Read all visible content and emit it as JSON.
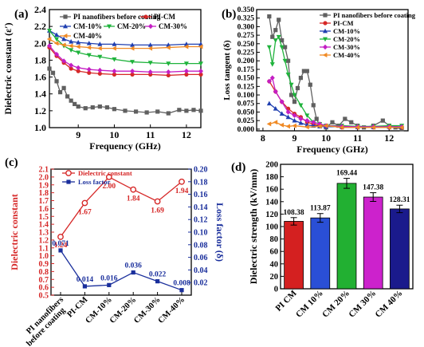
{
  "chart_data": [
    {
      "panel_label": "(a)",
      "type": "line",
      "xlabel": "Frequency (GHz)",
      "ylabel": "Dielectric constant (ε′)",
      "xlim": [
        8.2,
        12.4
      ],
      "ylim": [
        1.0,
        2.4
      ],
      "x_ticks": [
        9,
        10,
        11,
        12
      ],
      "y_ticks": [
        1.0,
        1.2,
        1.4,
        1.6,
        1.8,
        2.0,
        2.2,
        2.4
      ],
      "y_decimals": 1,
      "legend_position": "top",
      "series": [
        {
          "name": "PI nanofibers before coating",
          "color": "#606060",
          "marker": "square",
          "x": [
            8.2,
            8.3,
            8.4,
            8.5,
            8.6,
            8.7,
            8.8,
            8.9,
            9.0,
            9.2,
            9.4,
            9.6,
            9.8,
            10.0,
            10.3,
            10.6,
            10.9,
            11.2,
            11.5,
            11.8,
            12.0,
            12.2,
            12.4
          ],
          "y": [
            1.7,
            1.65,
            1.55,
            1.42,
            1.47,
            1.37,
            1.32,
            1.28,
            1.25,
            1.23,
            1.24,
            1.25,
            1.24,
            1.22,
            1.2,
            1.19,
            1.18,
            1.19,
            1.17,
            1.21,
            1.2,
            1.21,
            1.2
          ]
        },
        {
          "name": "PI-CM",
          "color": "#d62828",
          "marker": "circle",
          "x": [
            8.2,
            8.4,
            8.6,
            8.8,
            9.0,
            9.3,
            9.6,
            10.0,
            10.5,
            11.0,
            11.5,
            12.0,
            12.4
          ],
          "y": [
            1.95,
            1.85,
            1.77,
            1.7,
            1.67,
            1.65,
            1.64,
            1.63,
            1.63,
            1.63,
            1.62,
            1.63,
            1.63
          ]
        },
        {
          "name": "CM-10%",
          "color": "#1f3fb0",
          "marker": "triangle-up",
          "x": [
            8.2,
            8.4,
            8.6,
            8.8,
            9.0,
            9.3,
            9.6,
            10.0,
            10.5,
            11.0,
            11.5,
            12.0,
            12.4
          ],
          "y": [
            2.15,
            2.1,
            2.05,
            2.02,
            2.01,
            2.0,
            1.99,
            1.99,
            1.98,
            1.98,
            1.98,
            1.99,
            1.99
          ]
        },
        {
          "name": "CM-20%",
          "color": "#1fb33c",
          "marker": "triangle-down",
          "x": [
            8.2,
            8.4,
            8.6,
            8.8,
            9.0,
            9.3,
            9.6,
            10.0,
            10.5,
            11.0,
            11.5,
            12.0,
            12.4
          ],
          "y": [
            2.15,
            2.05,
            1.97,
            1.92,
            1.89,
            1.86,
            1.84,
            1.81,
            1.78,
            1.77,
            1.76,
            1.76,
            1.76
          ]
        },
        {
          "name": "CM-30%",
          "color": "#c41ec4",
          "marker": "diamond",
          "x": [
            8.2,
            8.4,
            8.6,
            8.8,
            9.0,
            9.3,
            9.6,
            10.0,
            10.5,
            11.0,
            11.5,
            12.0,
            12.4
          ],
          "y": [
            1.97,
            1.87,
            1.79,
            1.74,
            1.71,
            1.69,
            1.68,
            1.67,
            1.67,
            1.66,
            1.66,
            1.67,
            1.67
          ]
        },
        {
          "name": "CM-40%",
          "color": "#f08a24",
          "marker": "triangle-left",
          "x": [
            8.2,
            8.4,
            8.6,
            8.8,
            9.0,
            9.3,
            9.6,
            10.0,
            10.5,
            11.0,
            11.5,
            12.0,
            12.4
          ],
          "y": [
            2.05,
            2.0,
            1.98,
            1.97,
            1.96,
            1.95,
            1.94,
            1.94,
            1.94,
            1.94,
            1.95,
            1.96,
            1.96
          ]
        }
      ]
    },
    {
      "panel_label": "(b)",
      "type": "line",
      "xlabel": "Frequency (GHz)",
      "ylabel": "Loss tangent (δ)",
      "xlim": [
        7.8,
        12.6
      ],
      "ylim": [
        -0.005,
        0.35
      ],
      "x_ticks": [
        8,
        9,
        10,
        11,
        12
      ],
      "y_ticks": [
        0.0,
        0.025,
        0.05,
        0.075,
        0.1,
        0.125,
        0.15,
        0.175,
        0.2,
        0.225,
        0.25,
        0.275,
        0.3,
        0.325,
        0.35
      ],
      "y_decimals": 3,
      "legend_position": "top-right",
      "series": [
        {
          "name": "PI nanofibers before coating",
          "color": "#606060",
          "marker": "square",
          "x": [
            8.2,
            8.3,
            8.4,
            8.5,
            8.6,
            8.7,
            8.8,
            8.9,
            9.0,
            9.1,
            9.2,
            9.3,
            9.4,
            9.5,
            9.6,
            9.7,
            9.8,
            10.0,
            10.2,
            10.4,
            10.6,
            10.8,
            11.0,
            11.2,
            11.5,
            11.8,
            12.0,
            12.2,
            12.4
          ],
          "y": [
            0.33,
            0.27,
            0.29,
            0.32,
            0.26,
            0.24,
            0.2,
            0.1,
            0.08,
            0.12,
            0.15,
            0.17,
            0.17,
            0.13,
            0.07,
            0.03,
            0.01,
            0.005,
            0.02,
            0.01,
            0.03,
            0.02,
            0.01,
            0.005,
            0.01,
            0.025,
            0.01,
            0.005,
            0.0
          ]
        },
        {
          "name": "PI-CM",
          "color": "#d62828",
          "marker": "circle",
          "x": [
            8.2,
            8.4,
            8.6,
            8.8,
            9.0,
            9.2,
            9.4,
            9.6,
            9.8,
            10.0,
            10.5,
            11.0,
            11.5,
            12.0,
            12.4
          ],
          "y": [
            0.14,
            0.11,
            0.08,
            0.06,
            0.045,
            0.035,
            0.02,
            0.015,
            0.01,
            0.01,
            0.005,
            0.005,
            0.005,
            0.005,
            0.005
          ]
        },
        {
          "name": "CM-10%",
          "color": "#1f3fb0",
          "marker": "triangle-up",
          "x": [
            8.2,
            8.4,
            8.6,
            8.8,
            9.0,
            9.2,
            9.4,
            9.6,
            9.8,
            10.0,
            10.5,
            11.0,
            11.5,
            12.0,
            12.4
          ],
          "y": [
            0.075,
            0.06,
            0.045,
            0.035,
            0.025,
            0.018,
            0.012,
            0.01,
            0.008,
            0.007,
            0.007,
            0.006,
            0.006,
            0.007,
            0.007
          ]
        },
        {
          "name": "CM-20%",
          "color": "#1fb33c",
          "marker": "triangle-down",
          "x": [
            8.2,
            8.3,
            8.4,
            8.5,
            8.6,
            8.7,
            8.8,
            8.9,
            9.0,
            9.2,
            9.4,
            9.6,
            9.8,
            10.0,
            10.5,
            11.0,
            11.5,
            12.0,
            12.4
          ],
          "y": [
            0.24,
            0.19,
            0.26,
            0.27,
            0.24,
            0.2,
            0.16,
            0.13,
            0.1,
            0.07,
            0.04,
            0.02,
            0.015,
            0.01,
            0.01,
            0.008,
            0.008,
            0.01,
            0.01
          ]
        },
        {
          "name": "CM-30%",
          "color": "#c41ec4",
          "marker": "diamond",
          "x": [
            8.2,
            8.3,
            8.4,
            8.6,
            8.8,
            9.0,
            9.2,
            9.4,
            9.6,
            9.8,
            10.0,
            10.5,
            11.0,
            11.5,
            12.0,
            12.4
          ],
          "y": [
            0.14,
            0.15,
            0.11,
            0.08,
            0.05,
            0.04,
            0.03,
            0.025,
            0.02,
            0.015,
            0.01,
            0.008,
            0.007,
            0.007,
            0.007,
            0.007
          ]
        },
        {
          "name": "CM-40%",
          "color": "#f08a24",
          "marker": "triangle-left",
          "x": [
            8.2,
            8.4,
            8.6,
            8.8,
            9.0,
            9.4,
            9.8,
            10.0,
            10.5,
            11.0,
            11.5,
            12.0,
            12.4
          ],
          "y": [
            0.015,
            0.02,
            0.012,
            0.008,
            0.01,
            0.006,
            0.008,
            0.01,
            0.005,
            0.005,
            0.005,
            0.005,
            0.005
          ]
        }
      ]
    },
    {
      "panel_label": "(c)",
      "type": "line",
      "categories": [
        "PI nanofibers before coating",
        "PI-CM",
        "CM-10%",
        "CM-20%",
        "CM-30%",
        "CM-40%"
      ],
      "ylabel_left": "Dielectric constant",
      "ylabel_right": "Loss factor (δ)",
      "ylim_left": [
        0.5,
        2.1
      ],
      "ylim_right": [
        0.0,
        0.2
      ],
      "y_ticks_left": [
        0.5,
        0.6,
        0.7,
        0.8,
        0.9,
        1.0,
        1.1,
        1.2,
        1.3,
        1.4,
        1.5,
        1.6,
        1.7,
        1.8,
        1.9,
        2.0,
        2.1
      ],
      "y_ticks_right": [
        0.02,
        0.04,
        0.06,
        0.08,
        0.1,
        0.12,
        0.14,
        0.16,
        0.18,
        0.2
      ],
      "left_decimals": 1,
      "right_decimals": 2,
      "legend_position": "top-left",
      "series": [
        {
          "name": "Dielectric constant",
          "axis": "left",
          "color": "#d62828",
          "marker": "circle-open",
          "values": [
            1.24,
            1.67,
            2.0,
            1.84,
            1.69,
            1.94
          ],
          "labels": [
            "1.24",
            "1.67",
            "2.00",
            "1.84",
            "1.69",
            "1.94"
          ]
        },
        {
          "name": "Loss factor",
          "axis": "right",
          "color": "#1a2f9c",
          "marker": "square",
          "values": [
            0.071,
            0.014,
            0.016,
            0.036,
            0.022,
            0.008
          ],
          "labels": [
            "0.071",
            "0.014",
            "0.016",
            "0.036",
            "0.022",
            "0.008"
          ]
        }
      ]
    },
    {
      "panel_label": "(d)",
      "type": "bar",
      "categories": [
        "PI CM",
        "CM 10%",
        "CM 20%",
        "CM 30%",
        "CM 40%"
      ],
      "values": [
        108.38,
        113.87,
        169.44,
        147.38,
        128.31
      ],
      "errors": [
        6,
        7,
        8,
        7,
        6
      ],
      "labels": [
        "108.38",
        "113.87",
        "169.44",
        "147.38",
        "128.31"
      ],
      "colors": [
        "#d42020",
        "#2a4fd6",
        "#22b032",
        "#cc22cc",
        "#1a1a8c"
      ],
      "ylabel": "Dielectric strength (kV/mm)",
      "ylim": [
        0,
        200
      ],
      "y_ticks": [
        0,
        20,
        40,
        60,
        80,
        100,
        120,
        140,
        160,
        180,
        200
      ]
    }
  ]
}
